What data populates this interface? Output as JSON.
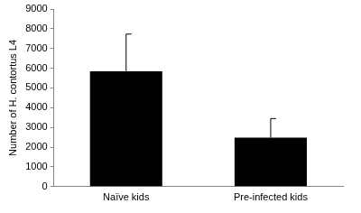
{
  "chart_data": {
    "type": "bar",
    "y_label": "Number of H. contortus L4",
    "categories": [
      "Naïve kids",
      "Pre-infected kids"
    ],
    "values": [
      5850,
      2480
    ],
    "errors": [
      1880,
      970
    ],
    "color": "#000000",
    "ylim": [
      0,
      9000
    ],
    "yticks": [
      0,
      1000,
      2000,
      3000,
      4000,
      5000,
      6000,
      7000,
      8000,
      9000
    ],
    "grid": false
  }
}
